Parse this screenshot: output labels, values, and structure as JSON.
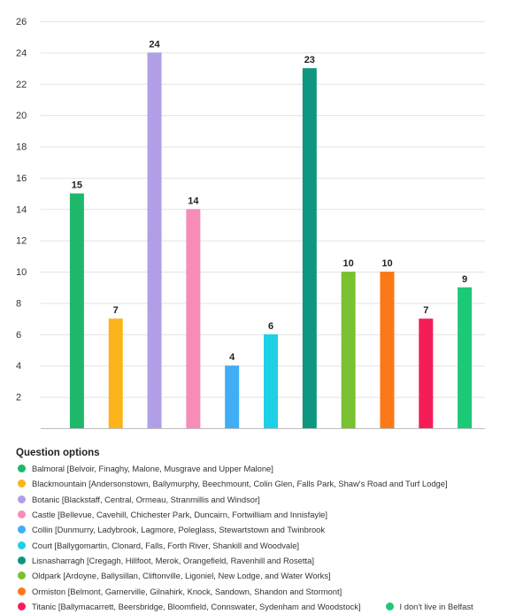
{
  "chart_data": {
    "type": "bar",
    "y_ticks": [
      2,
      4,
      6,
      8,
      10,
      12,
      14,
      16,
      18,
      20,
      22,
      24,
      26
    ],
    "ylim": [
      0,
      26
    ],
    "grid": true,
    "legend_title": "Question options",
    "legend_position": "bottom",
    "show_data_labels": true,
    "series": [
      {
        "name": "Balmoral [Belvoir, Finaghy, Malone, Musgrave and Upper Malone]",
        "value": 15,
        "color": "#1fb86b"
      },
      {
        "name": "Blackmountain [Andersonstown, Ballymurphy, Beechmount, Colin Glen, Falls Park, Shaw's Road and Turf Lodge]",
        "value": 7,
        "color": "#fbb41a"
      },
      {
        "name": "Botanic [Blackstaff, Central, Ormeau, Stranmillis and Windsor]",
        "value": 24,
        "color": "#b09fe6"
      },
      {
        "name": "Castle [Bellevue, Cavehill, Chichester Park, Duncairn, Fortwilliam and Innisfayle]",
        "value": 14,
        "color": "#f78cb8"
      },
      {
        "name": "Collin [Dunmurry, Ladybrook, Lagmore, Poleglass, Stewartstown and Twinbrook",
        "value": 4,
        "color": "#3faef5"
      },
      {
        "name": "Court [Ballygomartin, Clonard, Falls, Forth River, Shankill and Woodvale]",
        "value": 6,
        "color": "#1dd0e6"
      },
      {
        "name": "Lisnasharragh [Cregagh, Hillfoot, Merok, Orangefield, Ravenhill and Rosetta]",
        "value": 23,
        "color": "#0e9680"
      },
      {
        "name": "Oldpark [Ardoyne, Ballysillan, Cliftonville, Ligoniel, New Lodge, and Water Works]",
        "value": 10,
        "color": "#7ac131"
      },
      {
        "name": "Ormiston [Belmont, Garnerville, Gilnahirk, Knock, Sandown, Shandon and Stormont]",
        "value": 10,
        "color": "#fc7817"
      },
      {
        "name": "Titanic [Ballymacarrett, Beersbridge, Bloomfield, Connswater, Sydenham and Woodstock]",
        "value": 7,
        "color": "#f51d58"
      },
      {
        "name": "I don't live in Belfast",
        "value": 9,
        "color": "#1cc977"
      }
    ]
  }
}
